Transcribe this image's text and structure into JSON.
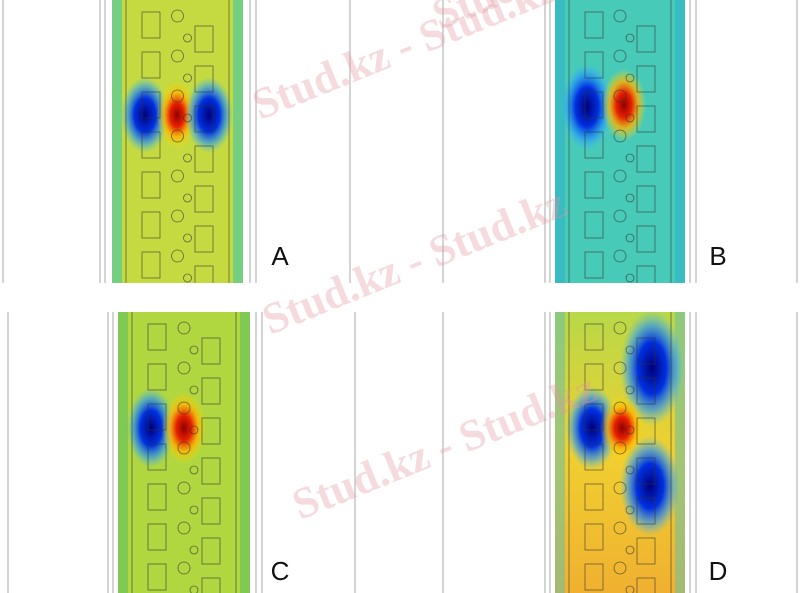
{
  "panels": [
    {
      "label": "A"
    },
    {
      "label": "B"
    },
    {
      "label": "C"
    },
    {
      "label": "D"
    }
  ],
  "watermark": [
    "Stud.kz - Stud.kz",
    "Stud.kz - Stud.kz",
    "Stud.kz - Stud.kz",
    "Stud.kz - Stud.kz"
  ]
}
